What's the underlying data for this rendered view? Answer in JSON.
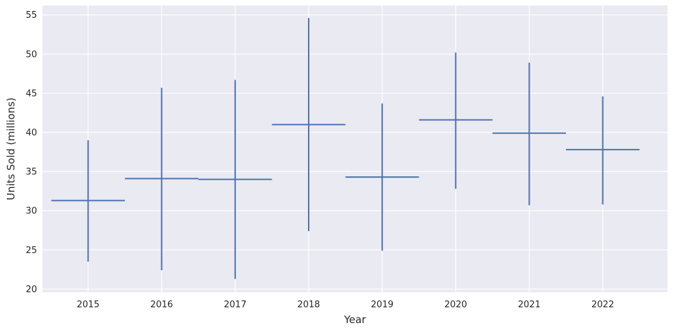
{
  "chart_data": {
    "type": "errorbar",
    "xlabel": "Year",
    "ylabel": "Units Sold (millions)",
    "x": [
      2015,
      2016,
      2017,
      2018,
      2019,
      2020,
      2021,
      2022
    ],
    "xerr": 0.5,
    "y": [
      31.3,
      34.1,
      34.0,
      41.0,
      34.3,
      41.6,
      39.9,
      37.8
    ],
    "yerr_low": [
      23.5,
      22.4,
      21.3,
      27.4,
      24.9,
      32.8,
      30.7,
      30.8
    ],
    "yerr_high": [
      39.0,
      45.7,
      46.7,
      54.6,
      43.7,
      50.2,
      48.9,
      44.6
    ],
    "xlim": [
      2014.38,
      2022.88
    ],
    "ylim": [
      19.6,
      56.2
    ],
    "yticks": [
      20,
      25,
      30,
      35,
      40,
      45,
      50,
      55
    ],
    "xticks": [
      2015,
      2016,
      2017,
      2018,
      2019,
      2020,
      2021,
      2022
    ],
    "grid": true,
    "colors": {
      "series": "#4c72b0",
      "background": "#eaeaf2",
      "grid": "#ffffff"
    }
  }
}
